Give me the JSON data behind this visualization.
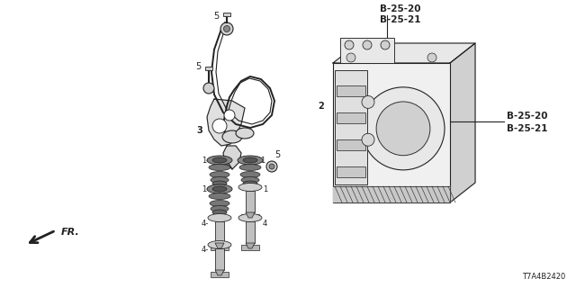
{
  "bg_color": "#ffffff",
  "line_color": "#222222",
  "label_color": "#000000",
  "ref_labels_top": [
    "B-25-20",
    "B-25-21"
  ],
  "ref_labels_right": [
    "B-25-20",
    "B-25-21"
  ],
  "diagram_id": "T7A4B2420",
  "font_size_label": 7,
  "font_size_ref": 7.5,
  "font_size_id": 6
}
